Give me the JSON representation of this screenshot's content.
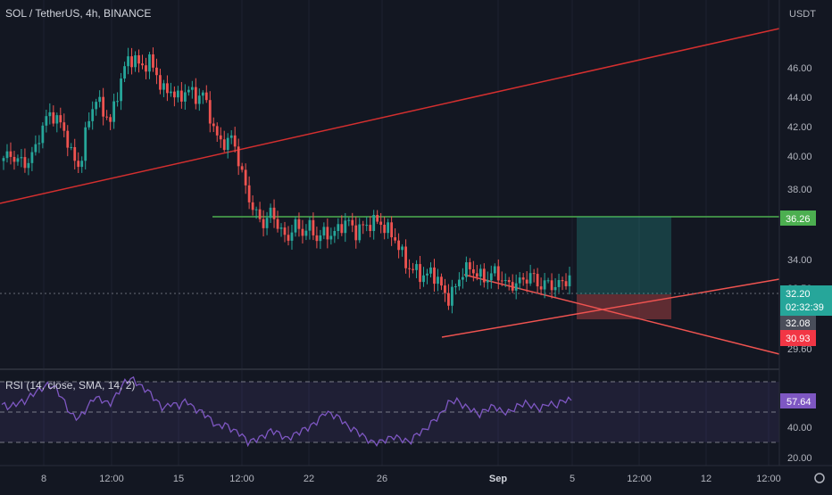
{
  "header": {
    "title": "SOL / TetherUS, 4h, BINANCE"
  },
  "price_axis": {
    "unit": "USDT",
    "ticks": [
      "46.00",
      "44.00",
      "42.00",
      "40.00",
      "38.00",
      "34.00",
      "32.50",
      "29.60"
    ]
  },
  "time_axis": {
    "ticks": [
      "8",
      "12:00",
      "15",
      "12:00",
      "22",
      "26",
      "Sep",
      "5",
      "12:00",
      "12",
      "12:00"
    ]
  },
  "labels": {
    "resistance": "36.26",
    "last_price": "32.20",
    "countdown": "02:32:39",
    "entry": "32.08",
    "stop": "30.93"
  },
  "rsi": {
    "title": "RSI (14, close, SMA, 14, 2)",
    "value": "57.64",
    "ticks": [
      "40.00",
      "20.00"
    ]
  },
  "colors": {
    "background": "#131722",
    "up": "#26a69a",
    "down": "#ef5350",
    "trendline": "#d32f2f",
    "resistance_line": "#4caf50",
    "rsi_line": "#7e57c2",
    "rsi_band": "#7e57c2",
    "axis_text": "#b2b5be"
  },
  "chart_data": {
    "type": "candlestick",
    "title": "SOL / TetherUS, 4h, BINANCE",
    "timeframe": "4h",
    "y_unit": "USDT",
    "ylim": [
      29.0,
      48.5
    ],
    "key_levels": {
      "resistance": 36.26,
      "last": 32.2,
      "entry": 32.08,
      "stop": 30.93
    },
    "close_path": [
      40.2,
      40.4,
      40.0,
      39.8,
      40.6,
      42.2,
      43.2,
      42.8,
      42.0,
      40.2,
      39.6,
      42.6,
      44.2,
      43.4,
      42.6,
      44.8,
      46.6,
      47.0,
      46.2,
      46.8,
      45.8,
      44.6,
      44.8,
      44.0,
      45.0,
      44.2,
      44.6,
      43.0,
      41.4,
      41.2,
      41.6,
      39.4,
      37.6,
      36.4,
      35.8,
      36.6,
      35.6,
      34.6,
      35.8,
      35.2,
      35.6,
      34.8,
      35.2,
      35.0,
      35.6,
      36.0,
      35.2,
      35.6,
      35.8,
      36.0,
      35.4,
      35.0,
      33.8,
      32.8,
      32.6,
      32.2,
      32.6,
      31.8,
      30.7,
      31.4,
      32.6,
      32.8,
      32.4,
      32.0,
      32.6,
      32.2,
      31.6,
      31.8,
      32.0,
      32.4,
      31.6,
      31.8,
      31.6,
      31.8,
      32.2
    ],
    "rsi_path": [
      55,
      53,
      56,
      57,
      62,
      65,
      68,
      66,
      58,
      48,
      46,
      52,
      60,
      58,
      55,
      62,
      70,
      72,
      67,
      64,
      58,
      52,
      56,
      54,
      58,
      52,
      50,
      46,
      40,
      42,
      38,
      36,
      30,
      32,
      34,
      38,
      36,
      32,
      35,
      38,
      40,
      44,
      50,
      48,
      46,
      40,
      38,
      34,
      30,
      30,
      32,
      34,
      32,
      30,
      36,
      38,
      44,
      48,
      56,
      58,
      54,
      52,
      48,
      52,
      54,
      50,
      50,
      54,
      56,
      54,
      52,
      56,
      54,
      58,
      57.64
    ],
    "rsi_bands": [
      70,
      50,
      30
    ]
  }
}
